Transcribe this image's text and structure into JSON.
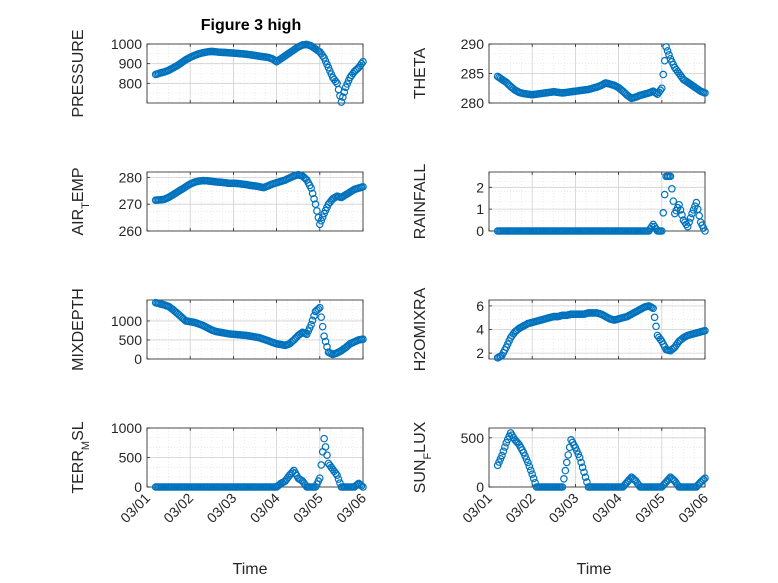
{
  "figure": {
    "title": "Figure 3 high"
  },
  "colors": {
    "series": "#0072BD",
    "axis": "#262626",
    "grid": "#dfdfdf"
  },
  "x_axis": {
    "label": "Time",
    "range": [
      "03/01",
      "03/06"
    ],
    "tick_labels": [
      "03/01",
      "03/02",
      "03/03",
      "03/04",
      "03/05",
      "03/06"
    ]
  },
  "chart_data": [
    {
      "type": "scatter",
      "ylabel": "PRESSURE",
      "ylim": [
        700,
        1000
      ],
      "yticks": [
        800,
        900,
        1000
      ],
      "grid": "on",
      "panel": "left-1",
      "x": [
        0.2,
        0.3,
        0.4,
        0.5,
        0.6,
        0.7,
        0.8,
        0.9,
        1.0,
        1.1,
        1.2,
        1.3,
        1.4,
        1.5,
        1.6,
        1.7,
        1.8,
        1.9,
        2.0,
        2.1,
        2.2,
        2.3,
        2.4,
        2.5,
        2.6,
        2.7,
        2.8,
        2.9,
        3.0,
        3.1,
        3.2,
        3.3,
        3.4,
        3.5,
        3.6,
        3.7,
        3.8,
        3.9,
        4.0,
        4.1,
        4.2,
        4.3,
        4.4,
        4.5,
        4.6,
        4.7,
        4.8,
        4.9,
        5.0
      ],
      "y": [
        845,
        852,
        858,
        866,
        878,
        890,
        905,
        920,
        932,
        942,
        950,
        956,
        960,
        962,
        960,
        958,
        957,
        955,
        954,
        952,
        950,
        948,
        945,
        942,
        938,
        935,
        932,
        925,
        910,
        925,
        940,
        955,
        970,
        985,
        995,
        998,
        990,
        975,
        960,
        930,
        880,
        830,
        800,
        705,
        780,
        830,
        860,
        880,
        910
      ]
    },
    {
      "type": "scatter",
      "ylabel": "THETA",
      "ylim": [
        280,
        290
      ],
      "yticks": [
        280,
        285,
        290
      ],
      "grid": "on",
      "panel": "right-1",
      "x": [
        0.2,
        0.3,
        0.4,
        0.5,
        0.6,
        0.7,
        0.8,
        0.9,
        1.0,
        1.1,
        1.2,
        1.3,
        1.4,
        1.5,
        1.6,
        1.7,
        1.8,
        1.9,
        2.0,
        2.1,
        2.2,
        2.3,
        2.4,
        2.5,
        2.6,
        2.7,
        2.8,
        2.9,
        3.0,
        3.1,
        3.2,
        3.3,
        3.4,
        3.5,
        3.6,
        3.7,
        3.8,
        3.9,
        4.0,
        4.1,
        4.2,
        4.3,
        4.4,
        4.5,
        4.6,
        4.7,
        4.8,
        4.9,
        5.0
      ],
      "y": [
        284.5,
        284.0,
        283.5,
        282.8,
        282.2,
        281.8,
        281.6,
        281.5,
        281.4,
        281.5,
        281.6,
        281.7,
        281.8,
        281.9,
        281.8,
        281.7,
        281.8,
        281.9,
        282.0,
        282.1,
        282.2,
        282.3,
        282.5,
        282.7,
        283.0,
        283.4,
        283.2,
        283.0,
        282.6,
        282.0,
        281.3,
        280.8,
        281.0,
        281.3,
        281.5,
        281.7,
        282.0,
        281.5,
        282.5,
        289.5,
        287.5,
        286.0,
        285.0,
        284.0,
        283.5,
        283.0,
        282.5,
        282.0,
        281.7
      ]
    },
    {
      "type": "scatter",
      "ylabel": "AIR_TEMP",
      "ylim": [
        260,
        282
      ],
      "yticks": [
        260,
        270,
        280
      ],
      "grid": "on",
      "panel": "left-2",
      "x": [
        0.2,
        0.3,
        0.4,
        0.5,
        0.6,
        0.7,
        0.8,
        0.9,
        1.0,
        1.1,
        1.2,
        1.3,
        1.4,
        1.5,
        1.6,
        1.7,
        1.8,
        1.9,
        2.0,
        2.1,
        2.2,
        2.3,
        2.4,
        2.5,
        2.6,
        2.7,
        2.8,
        2.9,
        3.0,
        3.1,
        3.2,
        3.3,
        3.4,
        3.5,
        3.6,
        3.7,
        3.8,
        3.9,
        4.0,
        4.1,
        4.2,
        4.3,
        4.4,
        4.5,
        4.6,
        4.7,
        4.8,
        4.9,
        5.0
      ],
      "y": [
        271.5,
        271.6,
        271.8,
        272.5,
        273.5,
        274.5,
        275.5,
        276.5,
        277.5,
        278.2,
        278.6,
        278.8,
        278.7,
        278.5,
        278.3,
        278.2,
        278.0,
        277.8,
        277.8,
        277.7,
        277.5,
        277.3,
        277.0,
        276.8,
        276.5,
        276.2,
        276.8,
        277.5,
        278.0,
        278.5,
        279.0,
        279.8,
        280.5,
        281.0,
        280.5,
        279.0,
        276.0,
        270.0,
        262.5,
        266.5,
        270.0,
        272.0,
        273.0,
        272.5,
        273.5,
        274.5,
        275.5,
        276.0,
        276.5
      ]
    },
    {
      "type": "scatter",
      "ylabel": "RAINFALL",
      "ylim": [
        0,
        2.7
      ],
      "yticks": [
        0,
        1,
        2
      ],
      "grid": "on",
      "panel": "right-2",
      "x": [
        0.2,
        0.3,
        0.4,
        0.5,
        0.6,
        0.7,
        0.8,
        0.9,
        1.0,
        1.1,
        1.2,
        1.3,
        1.4,
        1.5,
        1.6,
        1.7,
        1.8,
        1.9,
        2.0,
        2.1,
        2.2,
        2.3,
        2.4,
        2.5,
        2.6,
        2.7,
        2.8,
        2.9,
        3.0,
        3.1,
        3.2,
        3.3,
        3.4,
        3.5,
        3.6,
        3.7,
        3.8,
        3.9,
        4.0,
        4.1,
        4.2,
        4.3,
        4.4,
        4.5,
        4.6,
        4.7,
        4.8,
        4.9,
        5.0
      ],
      "y": [
        0,
        0,
        0,
        0,
        0,
        0,
        0,
        0,
        0,
        0,
        0,
        0,
        0,
        0,
        0,
        0,
        0,
        0,
        0,
        0,
        0,
        0,
        0,
        0,
        0,
        0,
        0,
        0,
        0,
        0,
        0,
        0,
        0,
        0,
        0,
        0,
        0.3,
        0,
        0,
        2.5,
        2.5,
        0.8,
        1.2,
        0.5,
        0.2,
        0.8,
        1.3,
        0.4,
        0
      ]
    },
    {
      "type": "scatter",
      "ylabel": "MIXDEPTH",
      "ylim": [
        0,
        1550
      ],
      "yticks": [
        0,
        500,
        1000
      ],
      "grid": "on",
      "panel": "left-3",
      "x": [
        0.2,
        0.3,
        0.4,
        0.5,
        0.6,
        0.7,
        0.8,
        0.9,
        1.0,
        1.1,
        1.2,
        1.3,
        1.4,
        1.5,
        1.6,
        1.7,
        1.8,
        1.9,
        2.0,
        2.1,
        2.2,
        2.3,
        2.4,
        2.5,
        2.6,
        2.7,
        2.8,
        2.9,
        3.0,
        3.1,
        3.2,
        3.3,
        3.4,
        3.5,
        3.6,
        3.7,
        3.8,
        3.9,
        4.0,
        4.1,
        4.2,
        4.3,
        4.4,
        4.5,
        4.6,
        4.7,
        4.8,
        4.9,
        5.0
      ],
      "y": [
        1480,
        1450,
        1420,
        1380,
        1300,
        1200,
        1100,
        1000,
        980,
        960,
        920,
        880,
        820,
        760,
        720,
        700,
        680,
        660,
        650,
        640,
        630,
        620,
        600,
        580,
        560,
        520,
        480,
        440,
        400,
        380,
        360,
        400,
        500,
        620,
        700,
        650,
        900,
        1250,
        1350,
        600,
        180,
        120,
        160,
        220,
        300,
        400,
        450,
        500,
        520
      ]
    },
    {
      "type": "scatter",
      "ylabel": "H2OMIXRA",
      "ylim": [
        1.5,
        6.5
      ],
      "yticks": [
        2,
        4,
        6
      ],
      "grid": "on",
      "panel": "right-3",
      "x": [
        0.2,
        0.3,
        0.4,
        0.5,
        0.6,
        0.7,
        0.8,
        0.9,
        1.0,
        1.1,
        1.2,
        1.3,
        1.4,
        1.5,
        1.6,
        1.7,
        1.8,
        1.9,
        2.0,
        2.1,
        2.2,
        2.3,
        2.4,
        2.5,
        2.6,
        2.7,
        2.8,
        2.9,
        3.0,
        3.1,
        3.2,
        3.3,
        3.4,
        3.5,
        3.6,
        3.7,
        3.8,
        3.9,
        4.0,
        4.1,
        4.2,
        4.3,
        4.4,
        4.5,
        4.6,
        4.7,
        4.8,
        4.9,
        5.0
      ],
      "y": [
        1.6,
        1.8,
        2.5,
        3.3,
        3.8,
        4.1,
        4.3,
        4.5,
        4.6,
        4.7,
        4.8,
        4.9,
        5.0,
        5.1,
        5.1,
        5.2,
        5.2,
        5.3,
        5.3,
        5.3,
        5.3,
        5.4,
        5.4,
        5.4,
        5.3,
        5.1,
        4.9,
        4.8,
        4.9,
        5.0,
        5.1,
        5.3,
        5.5,
        5.7,
        5.9,
        6.0,
        5.8,
        3.5,
        3.0,
        2.3,
        2.2,
        2.5,
        3.0,
        3.3,
        3.5,
        3.6,
        3.7,
        3.8,
        3.9
      ]
    },
    {
      "type": "scatter",
      "ylabel": "TERR_MSL",
      "ylim": [
        0,
        1000
      ],
      "yticks": [
        0,
        500,
        1000
      ],
      "grid": "on",
      "panel": "left-4",
      "x": [
        0.2,
        0.3,
        0.4,
        0.5,
        0.6,
        0.7,
        0.8,
        0.9,
        1.0,
        1.1,
        1.2,
        1.3,
        1.4,
        1.5,
        1.6,
        1.7,
        1.8,
        1.9,
        2.0,
        2.1,
        2.2,
        2.3,
        2.4,
        2.5,
        2.6,
        2.7,
        2.8,
        2.9,
        3.0,
        3.1,
        3.2,
        3.3,
        3.4,
        3.5,
        3.6,
        3.7,
        3.8,
        3.9,
        4.0,
        4.1,
        4.2,
        4.3,
        4.4,
        4.5,
        4.6,
        4.7,
        4.8,
        4.9,
        5.0
      ],
      "y": [
        0,
        0,
        0,
        0,
        0,
        0,
        0,
        0,
        0,
        0,
        0,
        0,
        0,
        0,
        0,
        0,
        0,
        0,
        0,
        0,
        0,
        0,
        0,
        0,
        0,
        0,
        0,
        0,
        0,
        60,
        100,
        200,
        280,
        150,
        100,
        0,
        0,
        0,
        150,
        820,
        400,
        300,
        200,
        0,
        0,
        0,
        0,
        60,
        0
      ]
    },
    {
      "type": "scatter",
      "ylabel": "SUN_FLUX",
      "ylim": [
        0,
        600
      ],
      "yticks": [
        0,
        500
      ],
      "grid": "on",
      "panel": "right-4",
      "x": [
        0.2,
        0.3,
        0.4,
        0.5,
        0.6,
        0.7,
        0.8,
        0.9,
        1.0,
        1.1,
        1.2,
        1.3,
        1.4,
        1.5,
        1.6,
        1.7,
        1.8,
        1.9,
        2.0,
        2.1,
        2.2,
        2.3,
        2.4,
        2.5,
        2.6,
        2.7,
        2.8,
        2.9,
        3.0,
        3.1,
        3.2,
        3.3,
        3.4,
        3.5,
        3.6,
        3.7,
        3.8,
        3.9,
        4.0,
        4.1,
        4.2,
        4.3,
        4.4,
        4.5,
        4.6,
        4.7,
        4.8,
        4.9,
        5.0
      ],
      "y": [
        220,
        320,
        450,
        550,
        480,
        430,
        350,
        250,
        130,
        0,
        0,
        0,
        0,
        0,
        0,
        0,
        250,
        480,
        400,
        300,
        150,
        0,
        0,
        0,
        0,
        0,
        0,
        0,
        0,
        0,
        50,
        100,
        60,
        0,
        0,
        0,
        0,
        0,
        0,
        50,
        100,
        60,
        0,
        0,
        0,
        0,
        0,
        50,
        90
      ]
    }
  ]
}
